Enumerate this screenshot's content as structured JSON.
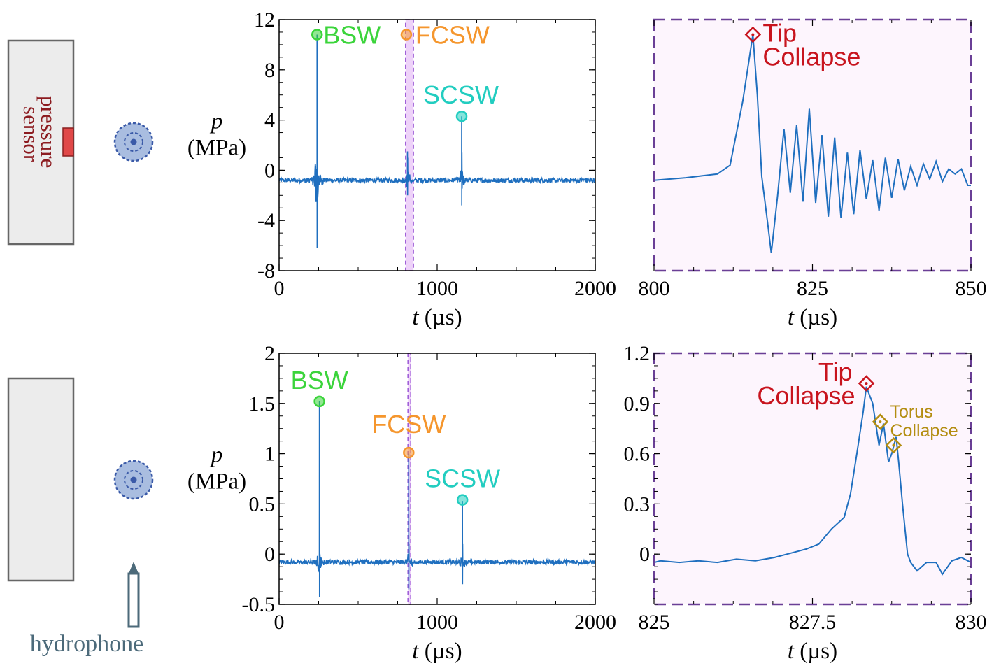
{
  "colors": {
    "trace": "#1f6fbf",
    "bsw": "#3bd43b",
    "fcsw": "#f5962d",
    "scsw": "#22cdc0",
    "tip": "#c8141e",
    "torus": "#b38d10",
    "sensor": "#e04848",
    "bubble_fill": "#a9bde0",
    "bubble_edge": "#3a5aa8",
    "wall_fill": "#ececec",
    "wall_edge": "#666666",
    "hydrophone": "#4c6a7a",
    "zoom_band": "#d99cf2",
    "zoom_box": "#6a3f96",
    "zoom_bg": "#fdf5fd"
  },
  "schematic": {
    "sensor_label_line1": "pressure",
    "sensor_label_line2": "sensor",
    "hydrophone_label": "hydrophone"
  },
  "chart_data": [
    {
      "id": "top-left",
      "type": "line",
      "xlabel_var": "t",
      "xlabel_unit": "(µs)",
      "ylabel_var": "p",
      "ylabel_unit": "(MPa)",
      "xlim": [
        0,
        2000
      ],
      "ylim": [
        -8,
        12
      ],
      "xticks": [
        "0",
        "1000",
        "2000"
      ],
      "yticks": [
        "-8",
        "-4",
        "0",
        "4",
        "8",
        "12"
      ],
      "grid": false,
      "baseline": -0.8,
      "peaks": [
        {
          "x": 240,
          "y": 10.8,
          "min": -6.2,
          "tail": 4.6
        },
        {
          "x": 812,
          "y": 1.5,
          "min": -2.0,
          "tail": 1.0
        },
        {
          "x": 1155,
          "y": 4.3,
          "min": -2.8,
          "tail": 1.4
        }
      ],
      "zoom_band": [
        800,
        850
      ],
      "markers": [
        {
          "label": "BSW",
          "x": 240,
          "y": 10.8,
          "shape": "circle",
          "color_key": "bsw"
        },
        {
          "label": "FCSW",
          "x": 805,
          "y": 10.8,
          "shape": "circle",
          "color_key": "fcsw"
        },
        {
          "label": "SCSW",
          "x": 1155,
          "y": 4.3,
          "shape": "circle",
          "color_key": "scsw"
        }
      ]
    },
    {
      "id": "top-right",
      "type": "line",
      "xlabel_var": "t",
      "xlabel_unit": "(µs)",
      "xlim": [
        800,
        850
      ],
      "ylim": [
        -8,
        12
      ],
      "xticks": [
        "800",
        "825",
        "850"
      ],
      "yticks": [],
      "grid": false,
      "x": [
        800,
        805,
        810,
        812,
        814,
        815.6,
        816.3,
        817,
        818,
        818.5,
        819.5,
        820.5,
        821.5,
        822.5,
        823.5,
        824.5,
        825.5,
        826.5,
        827.5,
        828.5,
        829.5,
        830.5,
        831.5,
        832.5,
        833.5,
        834.5,
        835.5,
        836.5,
        837.5,
        838.5,
        839.5,
        840.5,
        841.5,
        842.5,
        843.5,
        844.5,
        845.5,
        846.5,
        847.5,
        848.5,
        849.5,
        850
      ],
      "y": [
        -0.8,
        -0.6,
        -0.3,
        0.4,
        5.5,
        10.8,
        6.0,
        -0.5,
        -4.5,
        -6.6,
        -2.0,
        3.3,
        -1.8,
        3.6,
        -2.5,
        4.9,
        -2.6,
        2.8,
        -3.7,
        2.6,
        -3.8,
        1.4,
        -3.5,
        1.6,
        -2.3,
        0.8,
        -3.2,
        1.0,
        -2.2,
        0.9,
        -1.6,
        0.3,
        -1.2,
        0.5,
        -0.7,
        0.7,
        -0.9,
        0.1,
        -0.3,
        0.1,
        -1.2,
        -1.2
      ],
      "markers": [
        {
          "label_lines": [
            "Tip",
            "Collapse"
          ],
          "x": 815.6,
          "y": 10.8,
          "shape": "diamond",
          "color_key": "tip"
        }
      ]
    },
    {
      "id": "bottom-left",
      "type": "line",
      "xlabel_var": "t",
      "xlabel_unit": "(µs)",
      "ylabel_var": "p",
      "ylabel_unit": "(MPa)",
      "xlim": [
        0,
        2000
      ],
      "ylim": [
        -0.5,
        2
      ],
      "xticks": [
        "0",
        "1000",
        "2000"
      ],
      "yticks": [
        "-0.5",
        "0",
        "0.5",
        "1",
        "1.5",
        "2"
      ],
      "grid": false,
      "baseline": -0.08,
      "peaks": [
        {
          "x": 255,
          "y": 1.52,
          "min": -0.43,
          "tail": 0.15
        },
        {
          "x": 820,
          "y": 1.0,
          "min": -0.35,
          "tail": 0.1
        },
        {
          "x": 1160,
          "y": 0.53,
          "min": -0.3,
          "tail": 0.1
        }
      ],
      "zoom_band": [
        815,
        830
      ],
      "markers": [
        {
          "label": "BSW",
          "x": 255,
          "y": 1.52,
          "shape": "circle",
          "color_key": "bsw"
        },
        {
          "label": "FCSW",
          "x": 820,
          "y": 1.01,
          "shape": "circle",
          "color_key": "fcsw"
        },
        {
          "label": "SCSW",
          "x": 1160,
          "y": 0.54,
          "shape": "circle",
          "color_key": "scsw"
        }
      ]
    },
    {
      "id": "bottom-right",
      "type": "line",
      "xlabel_var": "t",
      "xlabel_unit": "(µs)",
      "xlim": [
        825,
        830
      ],
      "ylim": [
        -0.3,
        1.2
      ],
      "xticks": [
        "825",
        "827.5",
        "830"
      ],
      "yticks": [
        "0",
        "0.3",
        "0.6",
        "0.9",
        "1.2"
      ],
      "grid": false,
      "x": [
        825,
        825.1,
        825.4,
        825.7,
        826.0,
        826.3,
        826.6,
        826.9,
        827.1,
        827.4,
        827.6,
        827.8,
        828.0,
        828.1,
        828.2,
        828.3,
        828.35,
        828.45,
        828.55,
        828.62,
        828.7,
        828.75,
        828.82,
        828.86,
        828.92,
        829.0,
        829.05,
        829.15,
        829.3,
        829.45,
        829.55,
        829.7,
        829.85,
        830
      ],
      "y": [
        -0.05,
        -0.04,
        -0.05,
        -0.04,
        -0.05,
        -0.03,
        -0.04,
        -0.02,
        0.0,
        0.03,
        0.06,
        0.15,
        0.22,
        0.36,
        0.6,
        0.85,
        1.0,
        0.9,
        0.65,
        0.78,
        0.55,
        0.6,
        0.7,
        0.55,
        0.3,
        0.0,
        -0.05,
        -0.1,
        -0.05,
        -0.05,
        -0.12,
        -0.04,
        -0.02,
        -0.05
      ],
      "markers": [
        {
          "label_lines": [
            "Tip",
            "Collapse"
          ],
          "x": 828.35,
          "y": 1.02,
          "shape": "diamond",
          "color_key": "tip"
        },
        {
          "label_lines": [
            "Torus",
            "Collapse"
          ],
          "x": 828.57,
          "y": 0.79,
          "shape": "diamond",
          "color_key": "torus"
        },
        {
          "label_lines": [],
          "x": 828.78,
          "y": 0.65,
          "shape": "diamond",
          "color_key": "torus"
        }
      ]
    }
  ]
}
